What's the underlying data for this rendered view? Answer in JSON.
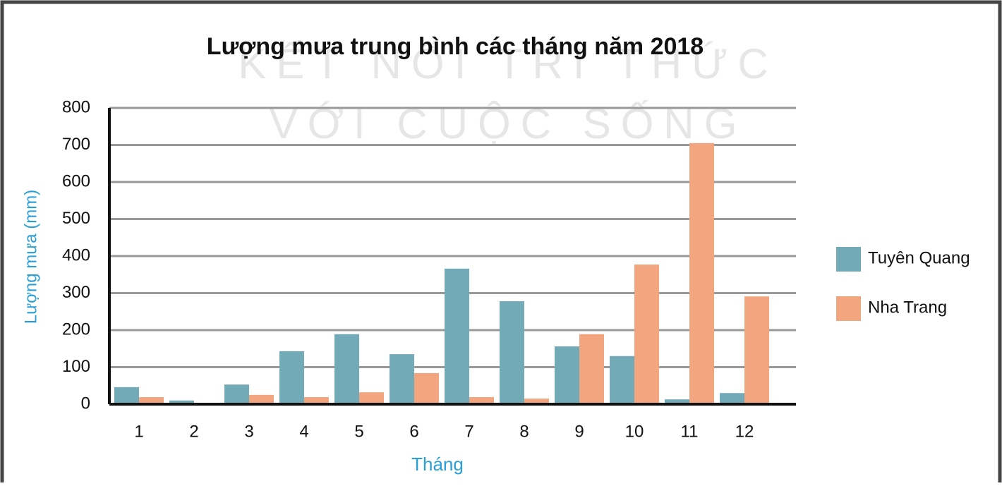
{
  "chart_data": {
    "type": "bar",
    "title": "Lượng mưa trung bình các tháng năm 2018",
    "watermark": [
      "KẾT NỐI TRI THỨC",
      "VỚI CUỘC SỐNG"
    ],
    "x_label": "Tháng",
    "y_label": "Lượng mưa (mm)",
    "categories": [
      "1",
      "2",
      "3",
      "4",
      "5",
      "6",
      "7",
      "8",
      "9",
      "10",
      "11",
      "12"
    ],
    "series": [
      {
        "name": "Tuyên Quang",
        "color": "#72aab8",
        "values": [
          46,
          10,
          53,
          143,
          189,
          135,
          366,
          278,
          156,
          130,
          13,
          30
        ]
      },
      {
        "name": "Nha Trang",
        "color": "#f2a57f",
        "values": [
          19,
          2,
          25,
          19,
          32,
          84,
          19,
          15,
          189,
          377,
          705,
          291
        ]
      }
    ],
    "ylim": [
      0,
      800
    ],
    "yticks": [
      0,
      100,
      200,
      300,
      400,
      500,
      600,
      700,
      800
    ],
    "grid": true,
    "legend": "right"
  }
}
